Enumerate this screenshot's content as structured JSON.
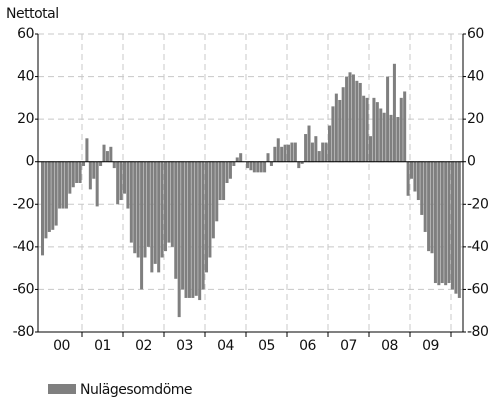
{
  "chart_data": {
    "type": "bar",
    "y_axis_label": "Nettotal",
    "legend": "Nulägesomdöme",
    "color": "#7f7f7f",
    "year_labels": [
      "00",
      "01",
      "02",
      "03",
      "04",
      "05",
      "06",
      "07",
      "08",
      "09"
    ],
    "values": [
      -44,
      -36,
      -33,
      -32,
      -30,
      -22,
      -22,
      -22,
      -15,
      -12,
      -10,
      -10,
      -2,
      11,
      -13,
      -8,
      -21,
      -2,
      8,
      5,
      7,
      -3,
      -20,
      -18,
      -15,
      -22,
      -38,
      -43,
      -45,
      -60,
      -45,
      -40,
      -52,
      -48,
      -52,
      -45,
      -42,
      -38,
      -40,
      -55,
      -73,
      -60,
      -64,
      -64,
      -64,
      -63,
      -65,
      -60,
      -52,
      -45,
      -36,
      -28,
      -18,
      -18,
      -10,
      -8,
      -2,
      2,
      4,
      0,
      -3,
      -4,
      -5,
      -5,
      -5,
      -5,
      4,
      -2,
      7,
      11,
      7,
      8,
      8,
      9,
      9,
      -3,
      -1,
      13,
      17,
      9,
      12,
      5,
      9,
      9,
      17,
      26,
      32,
      29,
      35,
      40,
      42,
      41,
      38,
      37,
      31,
      30,
      12,
      30,
      28,
      25,
      23,
      40,
      22,
      46,
      21,
      30,
      33,
      -16,
      -8,
      -14,
      -18,
      -25,
      -33,
      -42,
      -43,
      -57,
      -58,
      -57,
      -58,
      -57,
      -60,
      -62,
      -64
    ],
    "ylim": [
      -80,
      60
    ],
    "yticks": [
      -80,
      -60,
      -40,
      -20,
      0,
      20,
      40,
      60
    ],
    "grid": true
  }
}
